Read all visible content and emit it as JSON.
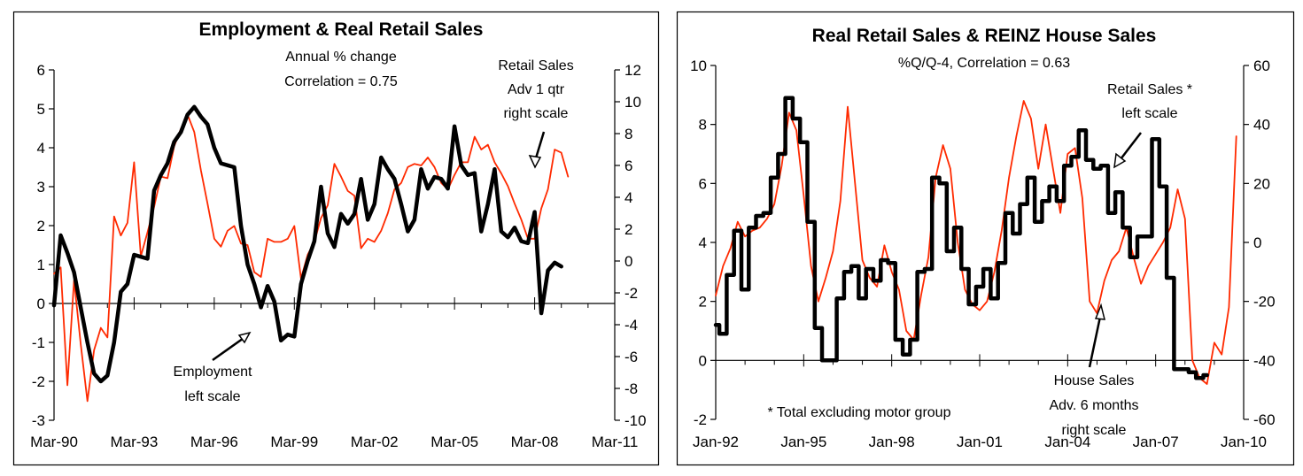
{
  "colors": {
    "series_black": "#000000",
    "series_red": "#ff2a00",
    "frame": "#000000"
  },
  "chart_data": [
    {
      "type": "line",
      "title": "Employment & Real Retail Sales",
      "subtitle": [
        "Annual % change",
        "Correlation = 0.75"
      ],
      "xlabel": "",
      "ylabel": "",
      "x_ticks": [
        "Mar-90",
        "Mar-93",
        "Mar-96",
        "Mar-99",
        "Mar-02",
        "Mar-05",
        "Mar-08",
        "Mar-11"
      ],
      "x_range": [
        1990.17,
        2011.17
      ],
      "y_left": {
        "range": [
          -3,
          6
        ],
        "ticks": [
          "6",
          "5",
          "4",
          "3",
          "2",
          "1",
          "0",
          "-1",
          "-2",
          "-3"
        ]
      },
      "y_right": {
        "range": [
          -10,
          12
        ],
        "ticks": [
          "12",
          "10",
          "8",
          "6",
          "4",
          "2",
          "0",
          "-2",
          "-4",
          "-6",
          "-8",
          "-10"
        ]
      },
      "annotations": [
        {
          "lines": [
            "Retail Sales",
            "Adv 1 qtr",
            "right scale"
          ]
        },
        {
          "lines": [
            "Employment",
            "left scale"
          ]
        }
      ],
      "series": [
        {
          "name": "Employment (left scale)",
          "axis": "left",
          "color": "#000000",
          "x": [
            1990.17,
            1990.42,
            1990.67,
            1990.92,
            1991.17,
            1991.42,
            1991.67,
            1991.92,
            1992.17,
            1992.42,
            1992.67,
            1992.92,
            1993.17,
            1993.42,
            1993.67,
            1993.92,
            1994.17,
            1994.42,
            1994.67,
            1994.92,
            1995.17,
            1995.42,
            1995.67,
            1995.92,
            1996.17,
            1996.42,
            1996.67,
            1996.92,
            1997.17,
            1997.42,
            1997.67,
            1997.92,
            1998.17,
            1998.42,
            1998.67,
            1998.92,
            1999.17,
            1999.42,
            1999.67,
            1999.92,
            2000.17,
            2000.42,
            2000.67,
            2000.92,
            2001.17,
            2001.42,
            2001.67,
            2001.92,
            2002.17,
            2002.42,
            2002.67,
            2002.92,
            2003.17,
            2003.42,
            2003.67,
            2003.92,
            2004.17,
            2004.42,
            2004.67,
            2004.92,
            2005.17,
            2005.42,
            2005.67,
            2005.92,
            2006.17,
            2006.42,
            2006.67,
            2006.92,
            2007.17,
            2007.42,
            2007.67,
            2007.92,
            2008.17,
            2008.42,
            2008.67,
            2008.92,
            2009.17
          ],
          "values": [
            -0.05,
            1.75,
            1.3,
            0.8,
            -0.1,
            -1.0,
            -1.8,
            -2.0,
            -1.85,
            -1.0,
            0.3,
            0.5,
            1.25,
            1.2,
            1.15,
            2.9,
            3.3,
            3.6,
            4.15,
            4.4,
            4.85,
            5.05,
            4.8,
            4.6,
            4.0,
            3.6,
            3.55,
            3.5,
            2.0,
            1.0,
            0.5,
            -0.1,
            0.45,
            0.05,
            -0.95,
            -0.8,
            -0.85,
            0.5,
            1.1,
            1.6,
            3.0,
            1.8,
            1.45,
            2.3,
            2.05,
            2.3,
            3.2,
            2.15,
            2.55,
            3.75,
            3.45,
            3.2,
            2.55,
            1.85,
            2.15,
            3.45,
            2.95,
            3.25,
            3.2,
            2.95,
            4.55,
            3.55,
            3.3,
            3.35,
            1.85,
            2.55,
            3.45,
            1.85,
            1.7,
            1.95,
            1.6,
            1.55,
            2.35,
            -0.25,
            0.85,
            1.05,
            0.95
          ]
        },
        {
          "name": "Retail Sales Adv 1 qtr (right scale)",
          "axis": "right",
          "color": "#ff2a00",
          "x": [
            1990.17,
            1990.42,
            1990.67,
            1990.92,
            1991.17,
            1991.42,
            1991.67,
            1991.92,
            1992.17,
            1992.42,
            1992.67,
            1992.92,
            1993.17,
            1993.42,
            1993.67,
            1993.92,
            1994.17,
            1994.42,
            1994.67,
            1994.92,
            1995.17,
            1995.42,
            1995.67,
            1995.92,
            1996.17,
            1996.42,
            1996.67,
            1996.92,
            1997.17,
            1997.42,
            1997.67,
            1997.92,
            1998.17,
            1998.42,
            1998.67,
            1998.92,
            1999.17,
            1999.42,
            1999.67,
            1999.92,
            2000.17,
            2000.42,
            2000.67,
            2000.92,
            2001.17,
            2001.42,
            2001.67,
            2001.92,
            2002.17,
            2002.42,
            2002.67,
            2002.92,
            2003.17,
            2003.42,
            2003.67,
            2003.92,
            2004.17,
            2004.42,
            2004.67,
            2004.92,
            2005.17,
            2005.42,
            2005.67,
            2005.92,
            2006.17,
            2006.42,
            2006.67,
            2006.92,
            2007.17,
            2007.42,
            2007.67,
            2007.92,
            2008.17,
            2008.42,
            2008.67,
            2008.92,
            2009.17,
            2009.42
          ],
          "values": [
            -0.8,
            -0.4,
            -7.8,
            -1.2,
            -5.2,
            -8.8,
            -5.6,
            -4.2,
            -4.8,
            2.8,
            1.6,
            2.4,
            6.2,
            0.3,
            1.8,
            3.4,
            5.3,
            5.2,
            7.2,
            8.3,
            9.2,
            8.1,
            5.7,
            3.6,
            1.4,
            0.9,
            1.9,
            2.2,
            1.1,
            1.0,
            -0.7,
            -1.0,
            1.4,
            1.2,
            1.2,
            1.4,
            2.2,
            -1.1,
            0.4,
            1.2,
            2.7,
            3.5,
            6.1,
            5.3,
            4.4,
            4.1,
            0.8,
            1.4,
            1.2,
            1.9,
            3.0,
            4.5,
            4.9,
            5.9,
            6.1,
            6.0,
            6.5,
            5.9,
            4.9,
            4.5,
            5.4,
            6.2,
            6.2,
            7.8,
            7.0,
            7.3,
            6.2,
            5.5,
            4.7,
            3.6,
            2.6,
            1.4,
            1.4,
            3.3,
            4.5,
            7.0,
            6.8,
            5.3
          ]
        }
      ]
    },
    {
      "type": "line",
      "title": "Real Retail Sales & REINZ House Sales",
      "subtitle": [
        "%Q/Q-4, Correlation = 0.63"
      ],
      "xlabel": "",
      "ylabel": "",
      "x_ticks": [
        "Jan-92",
        "Jan-95",
        "Jan-98",
        "Jan-01",
        "Jan-04",
        "Jan-07",
        "Jan-10"
      ],
      "x_range": [
        1992.0,
        2010.0
      ],
      "y_left": {
        "range": [
          -2,
          10
        ],
        "ticks": [
          "10",
          "8",
          "6",
          "4",
          "2",
          "0",
          "-2"
        ]
      },
      "y_right": {
        "range": [
          -60,
          60
        ],
        "ticks": [
          "60",
          "40",
          "20",
          "0",
          "-20",
          "-40",
          "-60"
        ]
      },
      "footnote": "* Total excluding motor group",
      "annotations": [
        {
          "lines": [
            "Retail Sales *",
            "left scale"
          ]
        },
        {
          "lines": [
            "House Sales",
            "Adv. 6 months",
            "right scale"
          ]
        }
      ],
      "series": [
        {
          "name": "Retail Sales * (left scale)",
          "axis": "left",
          "color": "#000000",
          "x": [
            1992.0,
            1992.25,
            1992.5,
            1992.75,
            1993.0,
            1993.25,
            1993.5,
            1993.75,
            1994.0,
            1994.25,
            1994.5,
            1994.75,
            1995.0,
            1995.25,
            1995.5,
            1995.75,
            1996.0,
            1996.25,
            1996.5,
            1996.75,
            1997.0,
            1997.25,
            1997.5,
            1997.75,
            1998.0,
            1998.25,
            1998.5,
            1998.75,
            1999.0,
            1999.25,
            1999.5,
            1999.75,
            2000.0,
            2000.25,
            2000.5,
            2000.75,
            2001.0,
            2001.25,
            2001.5,
            2001.75,
            2002.0,
            2002.25,
            2002.5,
            2002.75,
            2003.0,
            2003.25,
            2003.5,
            2003.75,
            2004.0,
            2004.25,
            2004.5,
            2004.75,
            2005.0,
            2005.25,
            2005.5,
            2005.75,
            2006.0,
            2006.25,
            2006.5,
            2006.75,
            2007.0,
            2007.25,
            2007.5,
            2007.75,
            2008.0,
            2008.25,
            2008.5,
            2008.75
          ],
          "values": [
            1.2,
            0.9,
            2.9,
            4.4,
            2.4,
            4.5,
            4.9,
            5.0,
            6.2,
            7.0,
            8.9,
            8.2,
            7.4,
            4.7,
            1.1,
            0.0,
            0.0,
            2.1,
            3.0,
            3.2,
            2.1,
            3.1,
            2.7,
            3.4,
            3.3,
            0.7,
            0.2,
            0.7,
            3.0,
            3.1,
            6.2,
            6.0,
            3.7,
            4.5,
            3.1,
            1.9,
            2.5,
            3.1,
            2.1,
            3.3,
            5.0,
            4.3,
            5.3,
            6.2,
            4.7,
            5.4,
            5.9,
            5.4,
            6.6,
            6.9,
            7.8,
            6.8,
            6.5,
            6.6,
            5.0,
            5.7,
            4.5,
            3.5,
            4.2,
            4.2,
            7.5,
            5.9,
            2.8,
            -0.3,
            -0.3,
            -0.4,
            -0.6,
            -0.5
          ]
        },
        {
          "name": "House Sales Adv. 6 months (right scale)",
          "axis": "right",
          "color": "#ff2a00",
          "x": [
            1992.0,
            1992.25,
            1992.5,
            1992.75,
            1993.0,
            1993.25,
            1993.5,
            1993.75,
            1994.0,
            1994.25,
            1994.5,
            1994.75,
            1995.0,
            1995.25,
            1995.5,
            1995.75,
            1996.0,
            1996.25,
            1996.5,
            1996.75,
            1997.0,
            1997.25,
            1997.5,
            1997.75,
            1998.0,
            1998.25,
            1998.5,
            1998.75,
            1999.0,
            1999.25,
            1999.5,
            1999.75,
            2000.0,
            2000.25,
            2000.5,
            2000.75,
            2001.0,
            2001.25,
            2001.5,
            2001.75,
            2002.0,
            2002.25,
            2002.5,
            2002.75,
            2003.0,
            2003.25,
            2003.5,
            2003.75,
            2004.0,
            2004.25,
            2004.5,
            2004.75,
            2005.0,
            2005.25,
            2005.5,
            2005.75,
            2006.0,
            2006.25,
            2006.5,
            2006.75,
            2007.0,
            2007.25,
            2007.5,
            2007.75,
            2008.0,
            2008.25,
            2008.5,
            2008.75,
            2009.0,
            2009.25,
            2009.5,
            2009.75
          ],
          "values": [
            -18,
            -8,
            -2,
            7,
            2,
            4,
            5,
            8,
            13,
            26,
            44,
            38,
            16,
            -8,
            -20,
            -12,
            -3,
            14,
            46,
            20,
            -6,
            -12,
            -15,
            -1,
            -10,
            -16,
            -30,
            -33,
            -18,
            -5,
            22,
            33,
            25,
            0,
            -16,
            -21,
            -23,
            -20,
            -10,
            4,
            22,
            36,
            48,
            42,
            25,
            40,
            25,
            10,
            30,
            32,
            15,
            -20,
            -24,
            -13,
            -6,
            -3,
            5,
            -5,
            -14,
            -8,
            -4,
            0,
            5,
            18,
            8,
            -40,
            -46,
            -48,
            -34,
            -38,
            -22,
            36
          ]
        }
      ]
    }
  ]
}
